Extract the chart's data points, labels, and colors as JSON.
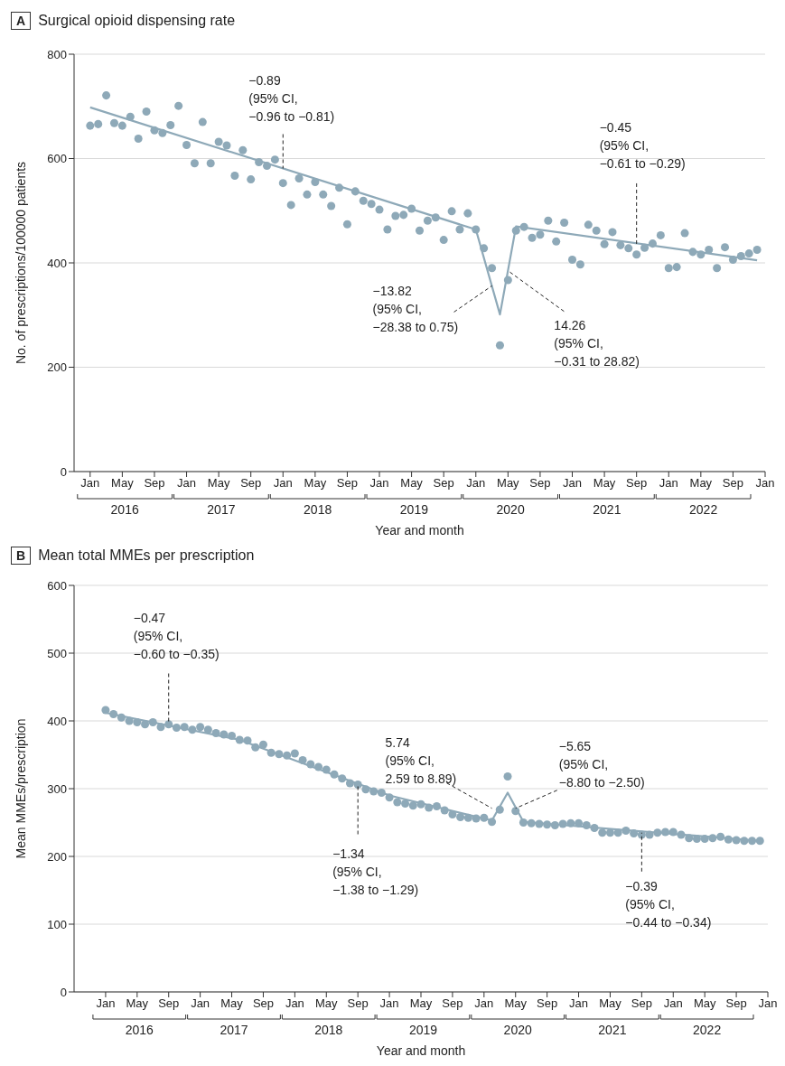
{
  "chart_data": [
    {
      "type": "scatter",
      "title": "Surgical opioid dispensing rate",
      "xlabel": "Year and month",
      "ylabel": "No. of prescriptions/100000 patients",
      "x": [
        "2016-01",
        "2016-02",
        "2016-03",
        "2016-04",
        "2016-05",
        "2016-06",
        "2016-07",
        "2016-08",
        "2016-09",
        "2016-10",
        "2016-11",
        "2016-12",
        "2017-01",
        "2017-02",
        "2017-03",
        "2017-04",
        "2017-05",
        "2017-06",
        "2017-07",
        "2017-08",
        "2017-09",
        "2017-10",
        "2017-11",
        "2017-12",
        "2018-01",
        "2018-02",
        "2018-03",
        "2018-04",
        "2018-05",
        "2018-06",
        "2018-07",
        "2018-08",
        "2018-09",
        "2018-10",
        "2018-11",
        "2018-12",
        "2019-01",
        "2019-02",
        "2019-03",
        "2019-04",
        "2019-05",
        "2019-06",
        "2019-07",
        "2019-08",
        "2019-09",
        "2019-10",
        "2019-11",
        "2019-12",
        "2020-01",
        "2020-02",
        "2020-03",
        "2020-04",
        "2020-05",
        "2020-06",
        "2020-07",
        "2020-08",
        "2020-09",
        "2020-10",
        "2020-11",
        "2020-12",
        "2021-01",
        "2021-02",
        "2021-03",
        "2021-04",
        "2021-05",
        "2021-06",
        "2021-07",
        "2021-08",
        "2021-09",
        "2021-10",
        "2021-11",
        "2021-12",
        "2022-01",
        "2022-02",
        "2022-03",
        "2022-04",
        "2022-05",
        "2022-06",
        "2022-07",
        "2022-08",
        "2022-09",
        "2022-10",
        "2022-11",
        "2022-12"
      ],
      "series": [
        {
          "type": "scatter",
          "color": "#8ea9b8",
          "marker": "circle",
          "values": [
            663,
            666,
            721,
            668,
            663,
            680,
            638,
            690,
            654,
            649,
            664,
            701,
            626,
            591,
            670,
            591,
            632,
            625,
            567,
            616,
            560,
            593,
            586,
            598,
            553,
            511,
            562,
            531,
            555,
            531,
            509,
            544,
            474,
            537,
            519,
            513,
            502,
            464,
            490,
            492,
            504,
            462,
            481,
            487,
            444,
            499,
            464,
            495,
            464,
            428,
            390,
            242,
            367,
            462,
            469,
            448,
            454,
            481,
            441,
            477,
            406,
            397,
            473,
            462,
            436,
            459,
            434,
            428,
            416,
            429,
            437,
            453,
            390,
            392,
            457,
            421,
            416,
            425,
            390,
            430,
            406,
            413,
            418,
            425
          ]
        },
        {
          "type": "line",
          "color": "#8ea9b8",
          "marker": "none",
          "x": [
            "2016-01",
            "2020-01",
            "2020-04",
            "2020-06",
            "2022-12"
          ],
          "values": [
            698,
            464,
            301,
            470,
            405
          ]
        }
      ],
      "xlim": [
        "2015-11",
        "2023-01"
      ],
      "xticks": [
        {
          "value": "2016-01",
          "label": "Jan"
        },
        {
          "value": "2016-05",
          "label": "May"
        },
        {
          "value": "2016-09",
          "label": "Sep"
        },
        {
          "value": "2017-01",
          "label": "Jan"
        },
        {
          "value": "2017-05",
          "label": "May"
        },
        {
          "value": "2017-09",
          "label": "Sep"
        },
        {
          "value": "2018-01",
          "label": "Jan"
        },
        {
          "value": "2018-05",
          "label": "May"
        },
        {
          "value": "2018-09",
          "label": "Sep"
        },
        {
          "value": "2019-01",
          "label": "Jan"
        },
        {
          "value": "2019-05",
          "label": "May"
        },
        {
          "value": "2019-09",
          "label": "Sep"
        },
        {
          "value": "2020-01",
          "label": "Jan"
        },
        {
          "value": "2020-05",
          "label": "May"
        },
        {
          "value": "2020-09",
          "label": "Sep"
        },
        {
          "value": "2021-01",
          "label": "Jan"
        },
        {
          "value": "2021-05",
          "label": "May"
        },
        {
          "value": "2021-09",
          "label": "Sep"
        },
        {
          "value": "2022-01",
          "label": "Jan"
        },
        {
          "value": "2022-05",
          "label": "May"
        },
        {
          "value": "2022-09",
          "label": "Sep"
        },
        {
          "value": "2023-01",
          "label": "Jan"
        }
      ],
      "ylim": [
        0,
        800
      ],
      "yticks": [
        0,
        200,
        400,
        600,
        800
      ],
      "grid": "y",
      "annotations": [
        "A",
        "2016",
        "2017",
        "2018",
        "2019",
        "2020",
        "2021",
        "2022",
        {
          "text": "−0.89\n(95% CI,\n−0.96 to −0.81)",
          "x": "2018-01",
          "y": 581
        },
        {
          "text": "−13.82\n(95% CI,\n−28.38 to 0.75)",
          "x": "2020-03",
          "y": 356
        },
        {
          "text": "14.26\n(95% CI,\n−0.31 to 28.82)",
          "x": "2020-05",
          "y": 385
        },
        {
          "text": "−0.45\n(95% CI,\n−0.61 to −0.29)",
          "x": "2021-09",
          "y": 433
        }
      ]
    },
    {
      "type": "scatter",
      "title": "Mean total MMEs per prescription",
      "xlabel": "Year and month",
      "ylabel": "Mean MMEs/prescription",
      "x": [
        "2016-01",
        "2016-02",
        "2016-03",
        "2016-04",
        "2016-05",
        "2016-06",
        "2016-07",
        "2016-08",
        "2016-09",
        "2016-10",
        "2016-11",
        "2016-12",
        "2017-01",
        "2017-02",
        "2017-03",
        "2017-04",
        "2017-05",
        "2017-06",
        "2017-07",
        "2017-08",
        "2017-09",
        "2017-10",
        "2017-11",
        "2017-12",
        "2018-01",
        "2018-02",
        "2018-03",
        "2018-04",
        "2018-05",
        "2018-06",
        "2018-07",
        "2018-08",
        "2018-09",
        "2018-10",
        "2018-11",
        "2018-12",
        "2019-01",
        "2019-02",
        "2019-03",
        "2019-04",
        "2019-05",
        "2019-06",
        "2019-07",
        "2019-08",
        "2019-09",
        "2019-10",
        "2019-11",
        "2019-12",
        "2020-01",
        "2020-02",
        "2020-03",
        "2020-04",
        "2020-05",
        "2020-06",
        "2020-07",
        "2020-08",
        "2020-09",
        "2020-10",
        "2020-11",
        "2020-12",
        "2021-01",
        "2021-02",
        "2021-03",
        "2021-04",
        "2021-05",
        "2021-06",
        "2021-07",
        "2021-08",
        "2021-09",
        "2021-10",
        "2021-11",
        "2021-12",
        "2022-01",
        "2022-02",
        "2022-03",
        "2022-04",
        "2022-05",
        "2022-06",
        "2022-07",
        "2022-08",
        "2022-09",
        "2022-10",
        "2022-11",
        "2022-12"
      ],
      "series": [
        {
          "type": "scatter",
          "color": "#8ea9b8",
          "marker": "circle",
          "values": [
            416,
            410,
            405,
            400,
            398,
            395,
            398,
            391,
            395,
            390,
            391,
            387,
            391,
            387,
            382,
            380,
            378,
            372,
            371,
            361,
            365,
            353,
            351,
            349,
            352,
            342,
            336,
            332,
            328,
            321,
            315,
            308,
            306,
            299,
            296,
            294,
            287,
            280,
            278,
            275,
            277,
            272,
            274,
            268,
            262,
            258,
            257,
            256,
            257,
            251,
            269,
            318,
            267,
            250,
            249,
            248,
            247,
            246,
            248,
            249,
            249,
            246,
            242,
            235,
            235,
            235,
            238,
            234,
            232,
            232,
            235,
            236,
            236,
            232,
            227,
            226,
            226,
            227,
            229,
            225,
            224,
            223,
            223,
            223
          ]
        },
        {
          "type": "line",
          "color": "#8ea9b8",
          "marker": "none",
          "x": [
            "2016-01",
            "2017-06",
            "2019-01",
            "2020-02",
            "2020-04",
            "2020-06",
            "2022-12"
          ],
          "values": [
            412,
            372,
            290,
            253,
            294,
            251,
            223
          ]
        }
      ],
      "xlim": [
        "2015-09",
        "2023-01"
      ],
      "xticks": [
        {
          "value": "2016-01",
          "label": "Jan"
        },
        {
          "value": "2016-05",
          "label": "May"
        },
        {
          "value": "2016-09",
          "label": "Sep"
        },
        {
          "value": "2017-01",
          "label": "Jan"
        },
        {
          "value": "2017-05",
          "label": "May"
        },
        {
          "value": "2017-09",
          "label": "Sep"
        },
        {
          "value": "2018-01",
          "label": "Jan"
        },
        {
          "value": "2018-05",
          "label": "May"
        },
        {
          "value": "2018-09",
          "label": "Sep"
        },
        {
          "value": "2019-01",
          "label": "Jan"
        },
        {
          "value": "2019-05",
          "label": "May"
        },
        {
          "value": "2019-09",
          "label": "Sep"
        },
        {
          "value": "2020-01",
          "label": "Jan"
        },
        {
          "value": "2020-05",
          "label": "May"
        },
        {
          "value": "2020-09",
          "label": "Sep"
        },
        {
          "value": "2021-01",
          "label": "Jan"
        },
        {
          "value": "2021-05",
          "label": "May"
        },
        {
          "value": "2021-09",
          "label": "Sep"
        },
        {
          "value": "2022-01",
          "label": "Jan"
        },
        {
          "value": "2022-05",
          "label": "May"
        },
        {
          "value": "2022-09",
          "label": "Sep"
        },
        {
          "value": "2023-01",
          "label": "Jan"
        }
      ],
      "ylim": [
        0,
        600
      ],
      "yticks": [
        0,
        100,
        200,
        300,
        400,
        500,
        600
      ],
      "grid": "y",
      "annotations": [
        "B",
        "2016",
        "2017",
        "2018",
        "2019",
        "2020",
        "2021",
        "2022",
        {
          "text": "−0.47\n(95% CI,\n−0.60 to −0.35)",
          "x": "2016-09",
          "y": 398
        },
        {
          "text": "−1.34\n(95% CI,\n−1.38 to −1.29)",
          "x": "2018-09",
          "y": 306
        },
        {
          "text": "5.74\n(95% CI,\n2.59 to 8.89)",
          "x": "2020-02",
          "y": 271
        },
        {
          "text": "−5.65\n(95% CI,\n−8.80 to −2.50)",
          "x": "2020-05",
          "y": 271
        },
        {
          "text": "−0.39\n(95% CI,\n−0.44 to −0.34)",
          "x": "2021-09",
          "y": 235
        }
      ]
    }
  ]
}
